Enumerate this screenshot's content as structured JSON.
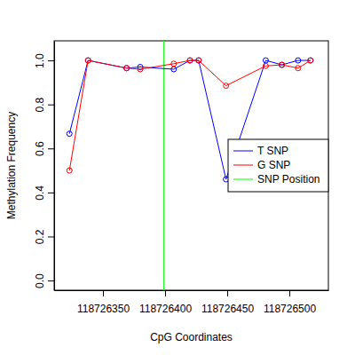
{
  "chart_data": {
    "type": "line",
    "x_label": "CpG Coordinates",
    "y_label": "Methylation Frequency",
    "x": [
      118726323,
      118726338,
      118726369,
      118726380,
      118726407,
      118726420,
      118726427,
      118726449,
      118726481,
      118726494,
      118726507,
      118726517
    ],
    "series": [
      {
        "name": "T SNP",
        "color": "#0000ff",
        "marker": "circle",
        "line_style": "solid",
        "values": [
          0.667,
          1.0,
          0.965,
          0.97,
          0.96,
          1.0,
          1.0,
          0.46,
          1.0,
          0.98,
          1.0,
          1.0
        ]
      },
      {
        "name": "G SNP",
        "color": "#ff0000",
        "marker": "circle",
        "line_style": "solid",
        "values": [
          0.5,
          1.0,
          0.965,
          0.96,
          0.985,
          1.0,
          1.0,
          0.885,
          0.975,
          0.98,
          0.965,
          1.0
        ]
      }
    ],
    "vlines": [
      {
        "name": "SNP Position",
        "x": 118726399,
        "color": "#00ff00"
      }
    ],
    "xlim": [
      118726310.7,
      118726531.4
    ],
    "ylim": [
      -0.044,
      1.089
    ],
    "xticks": [
      118726350,
      118726400,
      118726450,
      118726500
    ],
    "yticks": [
      {
        "value": 0,
        "label": "0.0"
      },
      0.2,
      0.4,
      0.6,
      0.8,
      {
        "value": 1,
        "label": "1.0"
      }
    ],
    "legend": "right"
  }
}
